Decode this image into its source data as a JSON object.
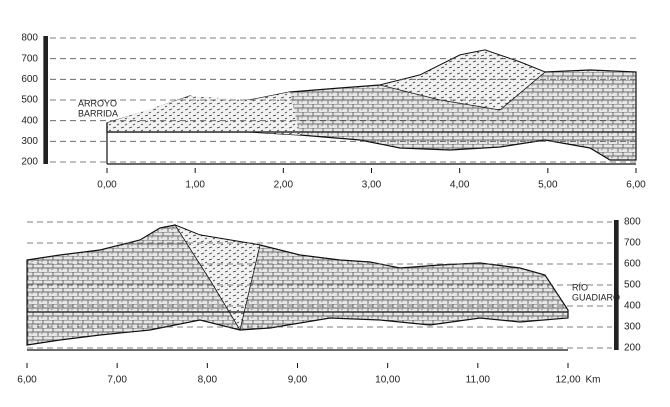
{
  "panels": [
    {
      "y_ticks": [
        "800",
        "700",
        "600",
        "500",
        "400",
        "300",
        "200"
      ],
      "x_ticks": [
        "0,00",
        "1,00",
        "2,00",
        "3,00",
        "4,00",
        "5,00",
        "6,00"
      ],
      "annotation": [
        "ARROYO",
        "BARRIDA"
      ]
    },
    {
      "y_ticks": [
        "800",
        "700",
        "600",
        "500",
        "400",
        "300",
        "200"
      ],
      "x_ticks": [
        "6,00",
        "7,00",
        "8,00",
        "9,00",
        "10,00",
        "11,00",
        "12,00"
      ],
      "annotation": [
        "RÍO",
        "GUADIARO"
      ],
      "x_unit": "Km"
    }
  ]
}
